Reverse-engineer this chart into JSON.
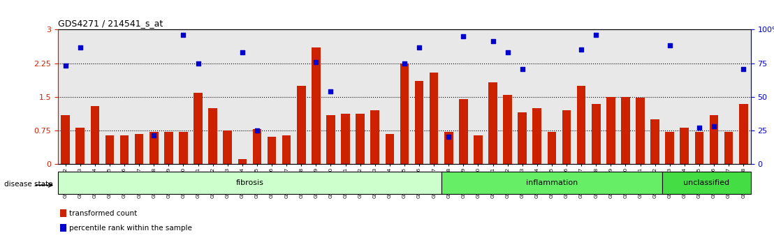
{
  "title": "GDS4271 / 214541_s_at",
  "samples": [
    "GSM380382",
    "GSM380383",
    "GSM380384",
    "GSM380385",
    "GSM380386",
    "GSM380387",
    "GSM380388",
    "GSM380389",
    "GSM380390",
    "GSM380391",
    "GSM380392",
    "GSM380393",
    "GSM380394",
    "GSM380395",
    "GSM380396",
    "GSM380397",
    "GSM380398",
    "GSM380399",
    "GSM380400",
    "GSM380401",
    "GSM380402",
    "GSM380403",
    "GSM380404",
    "GSM380405",
    "GSM380406",
    "GSM380407",
    "GSM380408",
    "GSM380409",
    "GSM380410",
    "GSM380411",
    "GSM380412",
    "GSM380413",
    "GSM380414",
    "GSM380415",
    "GSM380416",
    "GSM380417",
    "GSM380418",
    "GSM380419",
    "GSM380420",
    "GSM380421",
    "GSM380422",
    "GSM380423",
    "GSM380424",
    "GSM380425",
    "GSM380426",
    "GSM380427",
    "GSM380428"
  ],
  "bar_values": [
    1.1,
    0.82,
    1.3,
    0.65,
    0.65,
    0.68,
    0.72,
    0.72,
    0.72,
    1.6,
    1.25,
    0.75,
    0.12,
    0.78,
    0.62,
    0.65,
    1.75,
    2.6,
    1.1,
    1.12,
    1.12,
    1.2,
    0.68,
    2.25,
    1.85,
    2.05,
    0.72,
    1.45,
    0.65,
    1.82,
    1.55,
    1.15,
    1.25,
    0.72,
    1.2,
    1.75,
    1.35,
    1.5,
    1.5,
    1.48,
    1.0,
    0.72,
    0.82,
    0.72,
    1.1,
    0.72,
    1.35
  ],
  "blue_values": [
    2.2,
    2.6,
    null,
    null,
    null,
    null,
    0.65,
    null,
    2.88,
    2.25,
    null,
    null,
    2.5,
    0.75,
    null,
    null,
    null,
    2.28,
    1.62,
    null,
    null,
    null,
    null,
    2.25,
    2.6,
    null,
    0.62,
    2.85,
    null,
    2.75,
    2.5,
    2.12,
    null,
    null,
    null,
    2.55,
    2.88,
    null,
    null,
    null,
    null,
    2.65,
    null,
    0.82,
    0.85,
    null,
    2.12
  ],
  "disease_groups": [
    {
      "label": "fibrosis",
      "start": 0,
      "end": 26,
      "color": "#ccffcc"
    },
    {
      "label": "inflammation",
      "start": 26,
      "end": 41,
      "color": "#66ee66"
    },
    {
      "label": "unclassified",
      "start": 41,
      "end": 47,
      "color": "#44dd44"
    }
  ],
  "bar_color": "#cc2200",
  "blue_color": "#0000cc",
  "ylim_left": [
    0,
    3.0
  ],
  "ylim_right": [
    0,
    100
  ],
  "yticks_left": [
    0,
    0.75,
    1.5,
    2.25,
    3.0
  ],
  "yticks_right": [
    0,
    25,
    50,
    75,
    100
  ],
  "hlines": [
    0.75,
    1.5,
    2.25
  ],
  "legend_items": [
    {
      "label": "transformed count",
      "color": "#cc2200"
    },
    {
      "label": "percentile rank within the sample",
      "color": "#0000cc"
    }
  ]
}
